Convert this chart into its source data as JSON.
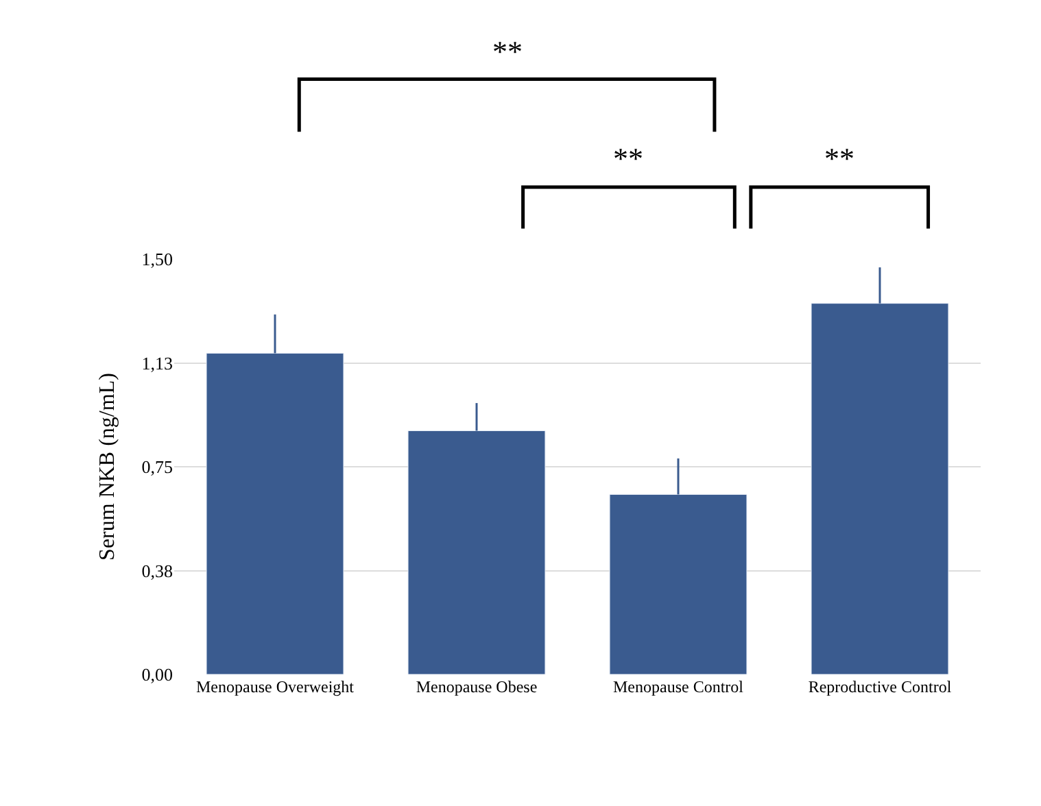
{
  "chart_data": {
    "type": "bar",
    "categories": [
      "Menopause Overweight",
      "Menopause Obese",
      "Menopause Control",
      "Reproductive Control"
    ],
    "values": [
      1.16,
      0.88,
      0.65,
      1.34
    ],
    "errors": [
      [
        1.16,
        1.3
      ],
      [
        0.88,
        0.98
      ],
      [
        0.65,
        0.78
      ],
      [
        1.34,
        1.47
      ]
    ],
    "color": "#3a5b8f",
    "ylabel": "Serum NKB (ng/mL)",
    "ylim": [
      0,
      1.5
    ],
    "yticks": [
      {
        "value": 0,
        "label": "0,00"
      },
      {
        "value": 0.375,
        "label": "0,38"
      },
      {
        "value": 0.75,
        "label": "0,75"
      },
      {
        "value": 1.125,
        "label": "1,13"
      },
      {
        "value": 1.5,
        "label": "1,50"
      }
    ],
    "grid": "y",
    "annotations": [
      "**",
      "**",
      "**"
    ]
  }
}
